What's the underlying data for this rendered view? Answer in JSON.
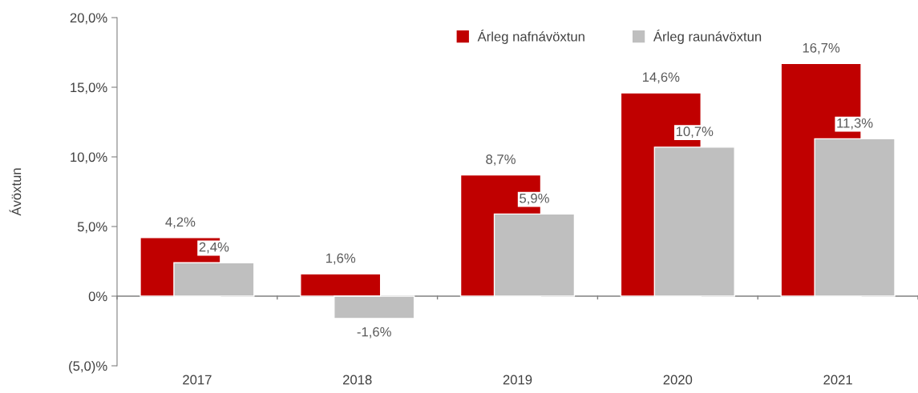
{
  "chart_data": {
    "type": "bar",
    "ylabel": "Ávöxtun",
    "categories": [
      "2017",
      "2018",
      "2019",
      "2020",
      "2021"
    ],
    "series": [
      {
        "name": "Árleg nafnávöxtun",
        "color": "#c00000",
        "values": [
          4.2,
          1.6,
          8.7,
          14.6,
          16.7
        ],
        "value_labels": [
          "4,2%",
          "1,6%",
          "8,7%",
          "14,6%",
          "16,7%"
        ]
      },
      {
        "name": "Árleg raunávöxtun",
        "color": "#bfbfbf",
        "values": [
          2.4,
          -1.6,
          5.9,
          10.7,
          11.3
        ],
        "value_labels": [
          "2,4%",
          "-1,6%",
          "5,9%",
          "10,7%",
          "11,3%"
        ]
      }
    ],
    "ylim": [
      -5,
      20
    ],
    "yticks": [
      {
        "value": -5,
        "label": "(5,0)%"
      },
      {
        "value": 0,
        "label": "0%"
      },
      {
        "value": 5,
        "label": "5,0%"
      },
      {
        "value": 10,
        "label": "10,0%"
      },
      {
        "value": 15,
        "label": "15,0%"
      },
      {
        "value": 20,
        "label": "20,0%"
      }
    ],
    "ref_lines": [
      {
        "axis": "y",
        "value": 0,
        "color": "#808080"
      }
    ],
    "legend": "top right",
    "grid": false
  }
}
